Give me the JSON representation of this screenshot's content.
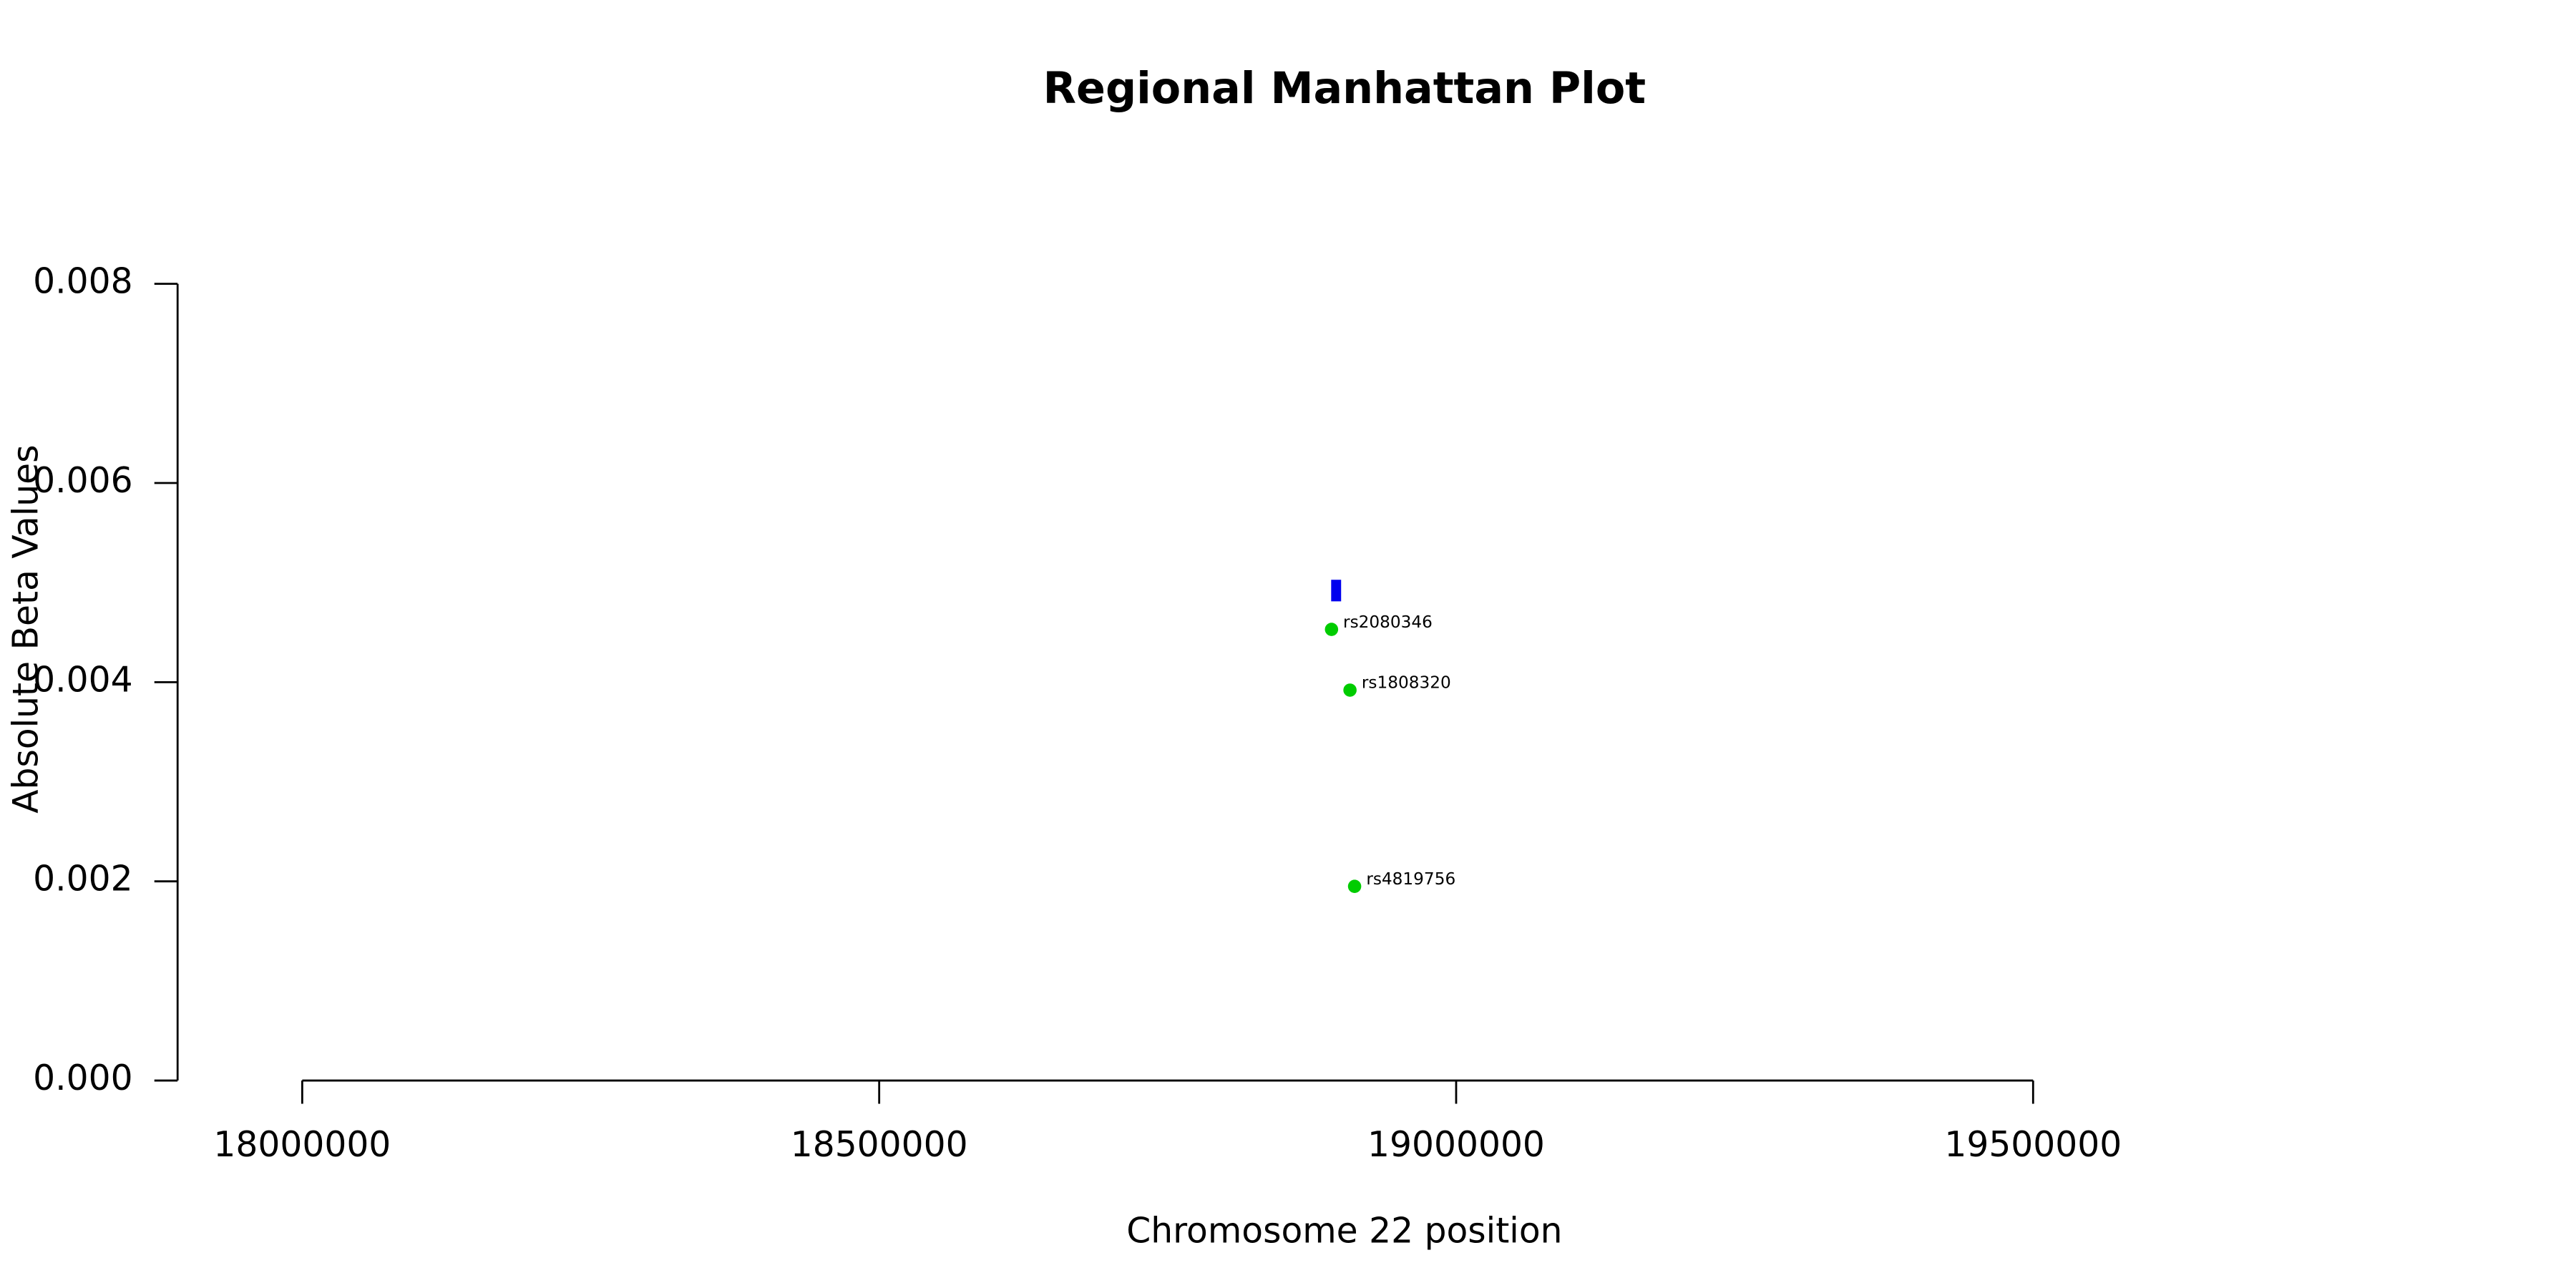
{
  "chart_data": {
    "type": "scatter",
    "title": "Regional Manhattan Plot",
    "x_label": "Chromosome 22 position",
    "y_label": "Absolute Beta Values",
    "series": [
      {
        "color": "#00cc00",
        "x": [
          18892000,
          18908000,
          18912000
        ],
        "values": [
          0.00453,
          0.00392,
          0.00195
        ],
        "point_labels": [
          "rs2080346",
          "rs1808320",
          "rs4819756"
        ]
      }
    ],
    "highlight": {
      "x": 18896000,
      "y": 0.00492,
      "color": "#0000ee"
    },
    "xlim": [
      17892000,
      19608000
    ],
    "xticks": [
      18000000,
      18500000,
      19000000,
      19500000
    ],
    "ylim": [
      0,
      0.008
    ],
    "yticks": [
      {
        "value": 0,
        "label": "0.000"
      },
      {
        "value": 0.002,
        "label": "0.002"
      },
      {
        "value": 0.004,
        "label": "0.004"
      },
      {
        "value": 0.006,
        "label": "0.006"
      },
      {
        "value": 0.008,
        "label": "0.008"
      }
    ]
  }
}
